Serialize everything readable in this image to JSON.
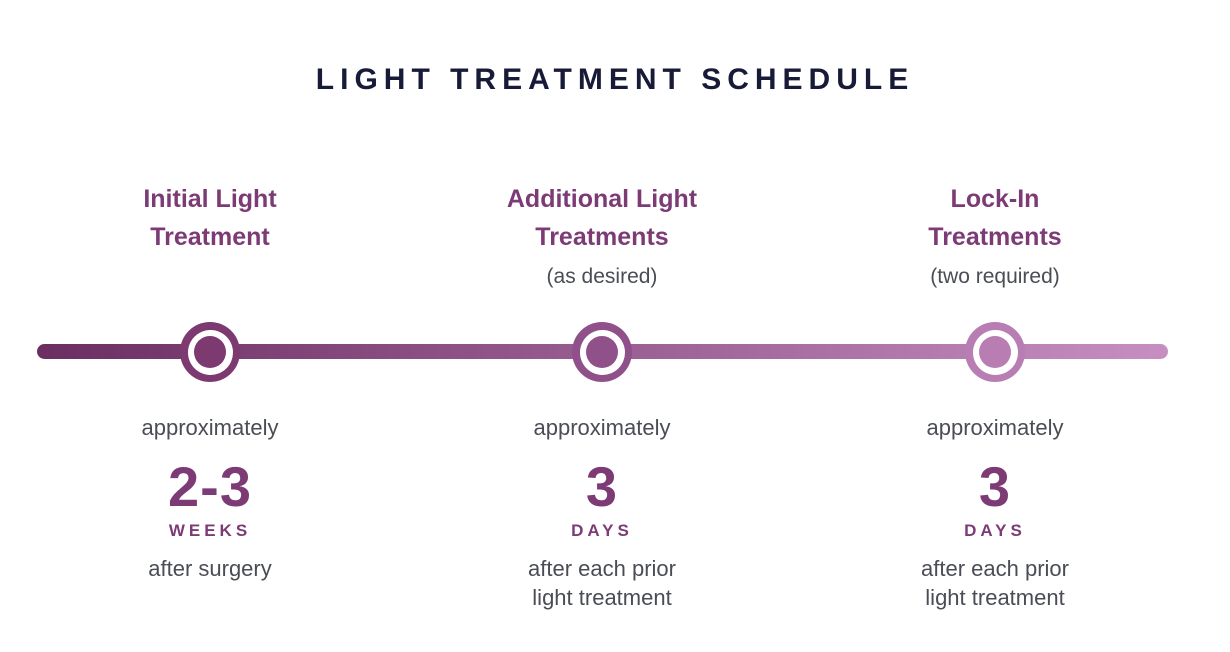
{
  "title": "LIGHT TREATMENT SCHEDULE",
  "colors": {
    "title_navy": "#171b38",
    "heading_purple": "#7d3b76",
    "body_gray": "#4a4d55",
    "timeline_gradient_start": "#6b2e61",
    "timeline_gradient_mid": "#995e91",
    "timeline_gradient_end": "#c78fc1",
    "marker_colors": [
      "#7c3a71",
      "#90518a",
      "#b87db3"
    ]
  },
  "milestones": [
    {
      "heading_lines": [
        "Initial Light",
        "Treatment"
      ],
      "subnote": "",
      "approx_label": "approximately",
      "amount": "2-3",
      "unit": "WEEKS",
      "detail_lines": [
        "after surgery",
        ""
      ]
    },
    {
      "heading_lines": [
        "Additional Light",
        "Treatments"
      ],
      "subnote": "(as desired)",
      "approx_label": "approximately",
      "amount": "3",
      "unit": "DAYS",
      "detail_lines": [
        "after each prior",
        "light treatment"
      ]
    },
    {
      "heading_lines": [
        "Lock-In",
        "Treatments"
      ],
      "subnote": "(two required)",
      "approx_label": "approximately",
      "amount": "3",
      "unit": "DAYS",
      "detail_lines": [
        "after each prior",
        "light treatment"
      ]
    }
  ]
}
